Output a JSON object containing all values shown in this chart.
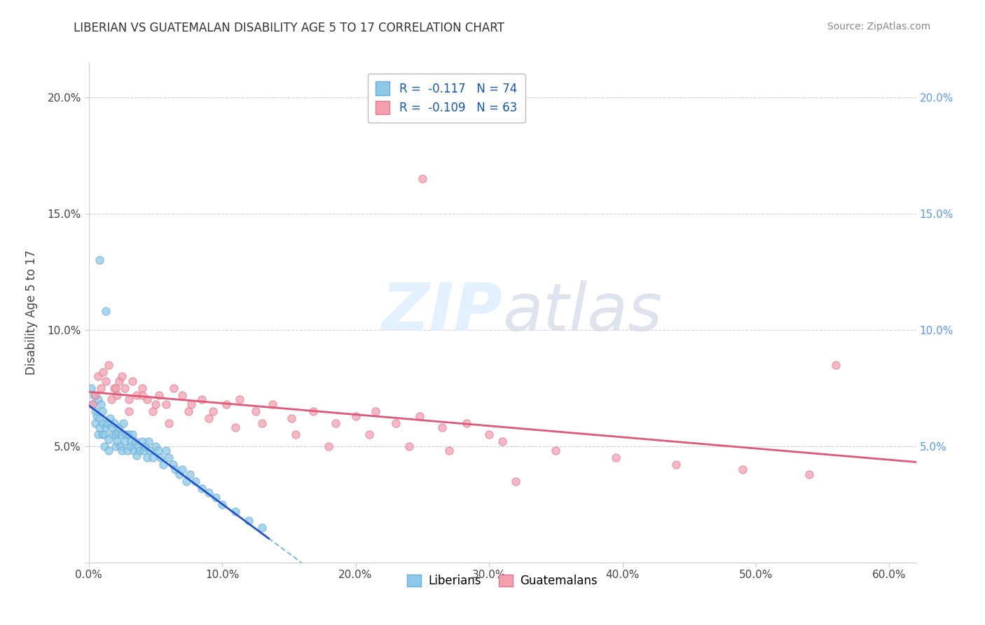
{
  "title": "LIBERIAN VS GUATEMALAN DISABILITY AGE 5 TO 17 CORRELATION CHART",
  "source_text": "Source: ZipAtlas.com",
  "ylabel": "Disability Age 5 to 17",
  "liberian_color": "#8DC8E8",
  "liberian_edge_color": "#6AAFD4",
  "guatemalan_color": "#F4A0B0",
  "guatemalan_edge_color": "#E07A90",
  "liberian_line_color": "#2255CC",
  "guatemalan_line_color": "#E05878",
  "trend_dash_color": "#8ABADD",
  "legend_liberian_r": "-0.117",
  "legend_liberian_n": "74",
  "legend_guatemalan_r": "-0.109",
  "legend_guatemalan_n": "63",
  "legend_liberian_label": "Liberians",
  "legend_guatemalan_label": "Guatemalans",
  "watermark_zip": "ZIP",
  "watermark_atlas": "atlas",
  "background_color": "#ffffff",
  "xlim": [
    0.0,
    0.62
  ],
  "ylim": [
    0.0,
    0.215
  ],
  "x_ticks": [
    0.0,
    0.1,
    0.2,
    0.3,
    0.4,
    0.5,
    0.6
  ],
  "x_labels": [
    "0.0%",
    "10.0%",
    "20.0%",
    "30.0%",
    "40.0%",
    "50.0%",
    "60.0%"
  ],
  "y_ticks": [
    0.0,
    0.05,
    0.1,
    0.15,
    0.2
  ],
  "y_labels_left": [
    "",
    "5.0%",
    "10.0%",
    "15.0%",
    "20.0%"
  ],
  "y_labels_right": [
    "5.0%",
    "10.0%",
    "15.0%",
    "20.0%"
  ],
  "y_ticks_right": [
    0.05,
    0.1,
    0.15,
    0.2
  ],
  "right_tick_color": "#5599FF"
}
